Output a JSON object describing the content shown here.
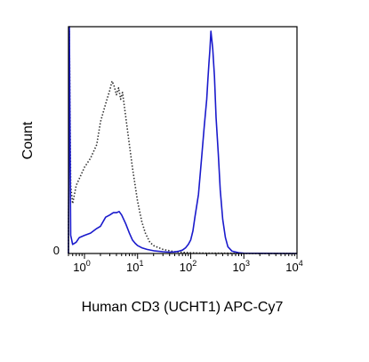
{
  "chart_data": {
    "type": "line",
    "title": "",
    "xlabel": "Human CD3 (UCHT1) APC-Cy7",
    "ylabel": "Count",
    "xscale": "log",
    "xlim": [
      0.5,
      10000
    ],
    "ylim": [
      0,
      100
    ],
    "x_ticks": [
      {
        "value": 1,
        "base": "10",
        "exp": "0"
      },
      {
        "value": 10,
        "base": "10",
        "exp": "1"
      },
      {
        "value": 100,
        "base": "10",
        "exp": "2"
      },
      {
        "value": 1000,
        "base": "10",
        "exp": "3"
      },
      {
        "value": 10000,
        "base": "10",
        "exp": "4"
      }
    ],
    "y_ticks": [
      {
        "value": 0,
        "label": "0"
      }
    ],
    "grid": false,
    "legend": "none",
    "series": [
      {
        "style": "dotted",
        "color": "#333333",
        "x": [
          0.5,
          0.52,
          0.55,
          0.6,
          0.7,
          0.8,
          1.0,
          1.3,
          1.7,
          2.0,
          2.5,
          3.0,
          3.3,
          3.6,
          4.0,
          4.4,
          4.8,
          5.2,
          6.0,
          7.0,
          8.0,
          9.0,
          10.0,
          12.0,
          14.0,
          17.0,
          20.0,
          25.0,
          30.0,
          40.0,
          50.0,
          70.0,
          100.0,
          150.0,
          200.0,
          300.0,
          500.0,
          1000.0,
          10000.0
        ],
        "y": [
          0,
          98,
          30,
          22,
          30,
          33,
          38,
          42,
          48,
          58,
          66,
          72,
          76,
          74,
          70,
          73,
          68,
          71,
          60,
          48,
          38,
          30,
          23,
          14,
          9,
          5,
          3.5,
          2.5,
          1.8,
          1.2,
          0.8,
          0.5,
          0.3,
          0.2,
          0.1,
          0.1,
          0.1,
          0.05,
          0
        ]
      },
      {
        "style": "solid",
        "color": "#1a1acc",
        "x": [
          0.5,
          0.52,
          0.55,
          0.6,
          0.7,
          0.8,
          1.0,
          1.3,
          1.7,
          2.0,
          2.5,
          3.0,
          3.5,
          4.0,
          4.5,
          5.0,
          5.5,
          6.0,
          7.0,
          8.0,
          9.0,
          10.0,
          12.0,
          15.0,
          20.0,
          30.0,
          40.0,
          50.0,
          60.0,
          70.0,
          80.0,
          90.0,
          100.0,
          110.0,
          120.0,
          140.0,
          160.0,
          180.0,
          200.0,
          210.0,
          220.0,
          230.0,
          240.0,
          250.0,
          260.0,
          280.0,
          300.0,
          330.0,
          360.0,
          400.0,
          450.0,
          500.0,
          600.0,
          800.0,
          1000.0,
          10000.0
        ],
        "y": [
          0,
          100,
          8,
          4,
          5,
          7,
          8,
          9,
          11,
          12,
          16,
          17,
          18,
          18,
          18.5,
          17,
          15,
          13,
          9,
          6,
          4.5,
          3.5,
          2.5,
          1.8,
          1.2,
          0.8,
          0.6,
          0.7,
          1.0,
          1.5,
          2.5,
          4,
          6,
          10,
          16,
          26,
          42,
          56,
          68,
          76,
          84,
          90,
          98,
          94,
          90,
          78,
          60,
          44,
          28,
          15,
          7,
          3,
          1,
          0.3,
          0.1,
          0
        ]
      }
    ]
  }
}
